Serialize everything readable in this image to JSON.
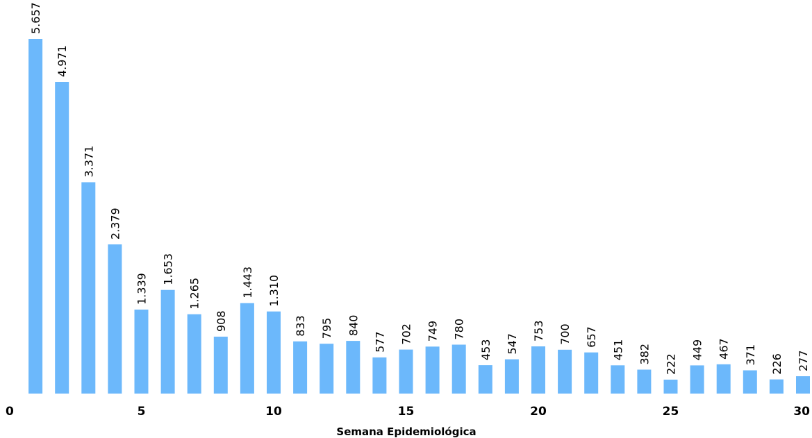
{
  "chart_data": {
    "type": "bar",
    "title": "",
    "xlabel": "Semana Epidemiológica",
    "ylabel": "",
    "x": [
      1,
      2,
      3,
      4,
      5,
      6,
      7,
      8,
      9,
      10,
      11,
      12,
      13,
      14,
      15,
      16,
      17,
      18,
      19,
      20,
      21,
      22,
      23,
      24,
      25,
      26,
      27,
      28,
      29,
      30
    ],
    "values": [
      5657,
      4971,
      3371,
      2379,
      1339,
      1653,
      1265,
      908,
      1443,
      1310,
      833,
      795,
      840,
      577,
      702,
      749,
      780,
      453,
      547,
      753,
      700,
      657,
      451,
      382,
      222,
      449,
      467,
      371,
      226,
      277
    ],
    "value_labels": [
      "5.657",
      "4.971",
      "3.371",
      "2.379",
      "1.339",
      "1.653",
      "1.265",
      "908",
      "1.443",
      "1.310",
      "833",
      "795",
      "840",
      "577",
      "702",
      "749",
      "780",
      "453",
      "547",
      "753",
      "700",
      "657",
      "451",
      "382",
      "222",
      "449",
      "467",
      "371",
      "226",
      "277"
    ],
    "x_ticks": [
      0,
      5,
      10,
      15,
      20,
      25,
      30
    ],
    "x_tick_labels": [
      "0",
      "5",
      "10",
      "15",
      "20",
      "25",
      "30"
    ],
    "xlim": [
      0,
      30
    ],
    "ylim": [
      0,
      5657
    ],
    "grid": false,
    "legend": "none",
    "bar_color": "#6cb8fb"
  }
}
